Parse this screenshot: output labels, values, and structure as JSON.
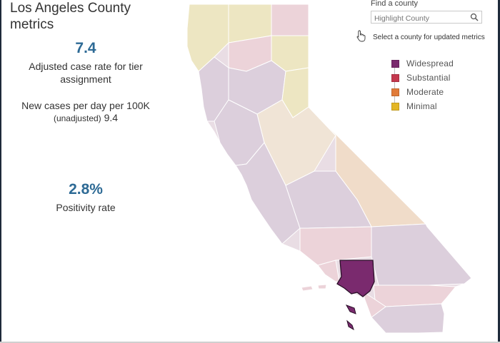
{
  "title": "Los Angeles County metrics",
  "metrics": {
    "adjusted_case_rate": {
      "value": "7.4",
      "label": "Adjusted case rate for tier assignment"
    },
    "new_cases": {
      "label": "New cases per day per 100K",
      "sub_label": "(unadjusted)",
      "value": "9.4"
    },
    "positivity": {
      "value": "2.8%",
      "label": "Positivity rate"
    }
  },
  "search": {
    "label": "Find a county",
    "placeholder": "Highlight County",
    "icon": "search-icon"
  },
  "hint": "Select a county for updated metrics",
  "legend": [
    {
      "label": "Widespread",
      "color": "#7a2a6e"
    },
    {
      "label": "Substantial",
      "color": "#c4384e"
    },
    {
      "label": "Moderate",
      "color": "#e07b39"
    },
    {
      "label": "Minimal",
      "color": "#e3b626"
    }
  ],
  "map": {
    "selected_county": "Los Angeles",
    "tier_colors": {
      "widespread_muted": "#dccfdc",
      "substantial_muted": "#ecd3d9",
      "moderate_muted": "#f0dcc9",
      "minimal_muted": "#ede6c2",
      "selected": "#7a2a6e"
    }
  }
}
